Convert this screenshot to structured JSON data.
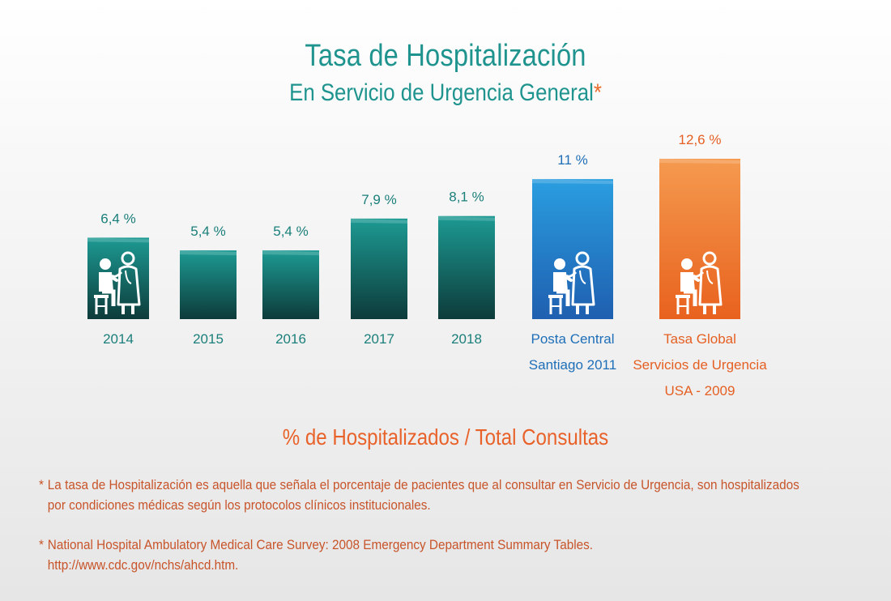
{
  "header": {
    "title": "Tasa de Hospitalización",
    "subtitle": "En Servicio de Urgencia General",
    "subtitle_mark": "*"
  },
  "axis_title": "% de Hospitalizados / Total Consultas",
  "notes": [
    {
      "mark": "*",
      "text": "La tasa de Hospitalización es aquella que señala el porcentaje de pacientes que al consultar en Servicio de Urgencia, son hospitalizados\npor condiciones médicas según los protocolos clínicos institucionales."
    },
    {
      "mark": "*",
      "text": "National Hospital Ambulatory Medical Care Survey: 2008 Emergency Department Summary Tables.\nhttp://www.cdc.gov/nchs/ahcd.htm."
    }
  ],
  "colors": {
    "teal": "#1d9a93",
    "teal_dark": "#0d3b3a",
    "blue": "#2a9ee0",
    "blue_dark": "#1f5fb0",
    "orange": "#f59a4f",
    "orange_dark": "#e8621e",
    "label_teal": "#1a7f7a",
    "label_blue": "#1f6fb8",
    "label_orange": "#e55f22"
  },
  "chart_data": {
    "type": "bar",
    "title": "Tasa de Hospitalización",
    "subtitle": "En Servicio de Urgencia General",
    "ylabel": "% de Hospitalizados / Total Consultas",
    "categories": [
      "2014",
      "2015",
      "2016",
      "2017",
      "2018",
      "Posta Central Santiago 2011",
      "Tasa Global Servicios de Urgencia USA - 2009"
    ],
    "category_lines": [
      [
        "2014"
      ],
      [
        "2015"
      ],
      [
        "2016"
      ],
      [
        "2017"
      ],
      [
        "2018"
      ],
      [
        "Posta Central",
        "Santiago 2011"
      ],
      [
        "Tasa Global",
        "Servicios de Urgencia",
        "USA - 2009"
      ]
    ],
    "values": [
      6.4,
      5.4,
      5.4,
      7.9,
      8.1,
      11,
      12.6
    ],
    "value_labels": [
      "6,4 %",
      "5,4 %",
      "5,4 %",
      "7,9  %",
      "8,1  %",
      "11 %",
      "12,6 %"
    ],
    "bar_colors": [
      "teal",
      "teal",
      "teal",
      "teal",
      "teal",
      "blue",
      "orange"
    ],
    "doctor_icon": [
      true,
      false,
      false,
      false,
      false,
      true,
      true
    ],
    "icon_name": "doctor-patient-icon",
    "ylim": [
      0,
      12.6
    ],
    "grid": false,
    "legend": "none"
  }
}
